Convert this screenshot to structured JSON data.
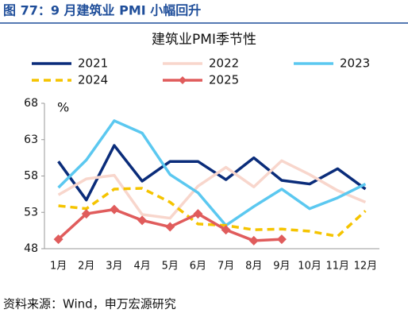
{
  "header": "图 77：9 月建筑业 PMI 小幅回升",
  "source": "资料来源：Wind，申万宏源研究",
  "chart_data": {
    "type": "line",
    "title": "建筑业PMI季节性",
    "y_unit": "%",
    "categories": [
      "1月",
      "2月",
      "3月",
      "4月",
      "5月",
      "6月",
      "7月",
      "8月",
      "9月",
      "10月",
      "11月",
      "12月"
    ],
    "ylim": [
      48,
      68
    ],
    "yticks": [
      48,
      53,
      58,
      63,
      68
    ],
    "series": [
      {
        "name": "2021",
        "color": "#0a2c7a",
        "values": [
          60.0,
          54.7,
          62.2,
          57.3,
          60.0,
          60.0,
          57.5,
          60.5,
          57.4,
          56.9,
          59.0,
          56.2
        ]
      },
      {
        "name": "2022",
        "color": "#f8d6cc",
        "values": [
          55.4,
          57.6,
          58.1,
          52.7,
          52.2,
          56.6,
          59.2,
          56.5,
          60.1,
          58.2,
          56.0,
          54.4
        ]
      },
      {
        "name": "2023",
        "color": "#5bc8f0",
        "values": [
          56.4,
          60.2,
          65.6,
          63.9,
          58.2,
          55.7,
          51.2,
          53.8,
          56.2,
          53.5,
          55.0,
          56.9
        ]
      },
      {
        "name": "2024",
        "color": "#f5c400",
        "dashed": true,
        "values": [
          53.9,
          53.5,
          56.2,
          56.3,
          54.4,
          51.4,
          51.2,
          50.6,
          50.7,
          50.4,
          49.7,
          53.2
        ]
      },
      {
        "name": "2025",
        "color": "#e05c5c",
        "marker": "diamond",
        "values": [
          49.3,
          52.8,
          53.4,
          51.9,
          51.0,
          52.8,
          50.6,
          49.1,
          49.3,
          null,
          null,
          null
        ]
      }
    ]
  }
}
